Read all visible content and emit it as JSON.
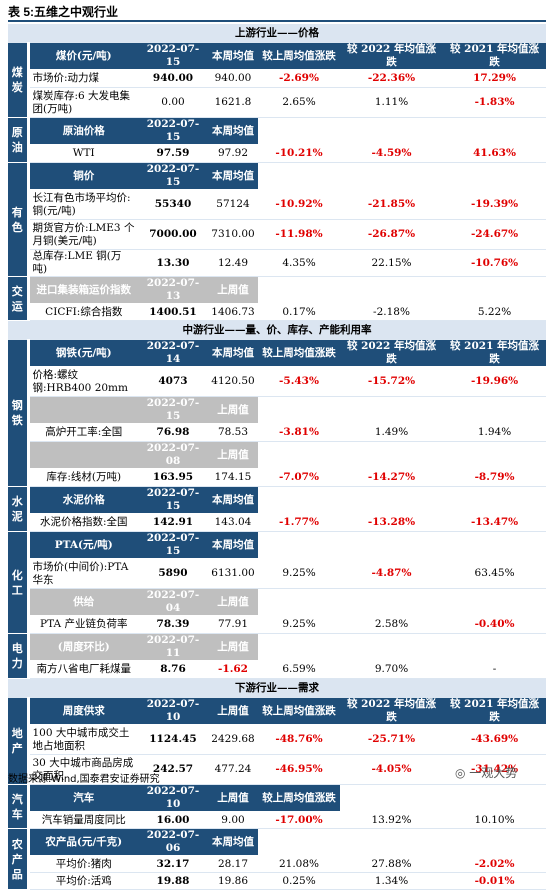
{
  "title": "表 5:五维之中观行业",
  "sections": {
    "up": "上游行业——价格",
    "mid": "中游行业——量、价、库存、产能利用率",
    "down": "下游行业——需求"
  },
  "cats": {
    "coal": "煤炭",
    "oil": "原油",
    "metal": "有色",
    "trans": "交运",
    "steel": "钢铁",
    "cement": "水泥",
    "chem": "化工",
    "power": "电力",
    "estate": "地产",
    "car": "汽车",
    "agri": "农产品"
  },
  "head": {
    "coal": [
      "煤价(元/吨)",
      "2022-07-15",
      "本周均值",
      "较上周均值涨跌",
      "较 2022 年均值涨跌",
      "较 2021 年均值涨跌"
    ],
    "oil": [
      "原油价格",
      "2022-07-15",
      "本周均值"
    ],
    "metal": [
      "铜价",
      "2022-07-15",
      "本周均值"
    ],
    "trans": [
      "进口集装箱运价指数",
      "2022-07-13",
      "上周值"
    ],
    "steel": [
      "钢铁(元/吨)",
      "2022-07-14",
      "本周均值",
      "较上周均值涨跌",
      "较 2022 年均值涨跌",
      "较 2021 年均值涨跌"
    ],
    "steel2": [
      "2022-07-15",
      "上周值"
    ],
    "steel3": [
      "2022-07-08",
      "上周值"
    ],
    "cement": [
      "水泥价格",
      "2022-07-15",
      "本周均值"
    ],
    "chem": [
      "PTA(元/吨)",
      "2022-07-15",
      "本周均值"
    ],
    "chem2": [
      "供给",
      "2022-07-04",
      "上周值"
    ],
    "power": [
      "(周度环比)",
      "2022-07-11",
      "上周值"
    ],
    "estate": [
      "周度供求",
      "2022-07-10",
      "上周值",
      "较上周均值涨跌",
      "较 2022 年均值涨跌",
      "较 2021 年均值涨跌"
    ],
    "car": [
      "汽车",
      "2022-07-10",
      "上周值",
      "较上周均值涨跌"
    ],
    "agri": [
      "农产品(元/千克)",
      "2022-07-06",
      "本周均值"
    ]
  },
  "rows": {
    "coal1": [
      "市场价:动力煤",
      "940.00",
      "940.00",
      "-2.69%",
      "-22.36%",
      "17.29%"
    ],
    "coal2": [
      "煤炭库存:6 大发电集团(万吨)",
      "0.00",
      "1621.8",
      "2.65%",
      "1.11%",
      "-1.83%"
    ],
    "oil1": [
      "WTI",
      "97.59",
      "97.92",
      "-10.21%",
      "-4.59%",
      "41.63%"
    ],
    "metal1": [
      "长江有色市场平均价:铜(元/吨)",
      "55340",
      "57124",
      "-10.92%",
      "-21.85%",
      "-19.39%"
    ],
    "metal2": [
      "期货官方价:LME3 个月铜(美元/吨)",
      "7000.00",
      "7310.00",
      "-11.98%",
      "-26.87%",
      "-24.67%"
    ],
    "metal3": [
      "总库存:LME 铜(万吨)",
      "13.30",
      "12.49",
      "4.35%",
      "22.15%",
      "-10.76%"
    ],
    "trans1": [
      "CICFI:综合指数",
      "1400.51",
      "1406.73",
      "0.17%",
      "-2.18%",
      "5.22%"
    ],
    "steel1": [
      "价格:螺纹钢:HRB400 20mm",
      "4073",
      "4120.50",
      "-5.43%",
      "-15.72%",
      "-19.96%"
    ],
    "steel2": [
      "高炉开工率:全国",
      "76.98",
      "78.53",
      "-3.81%",
      "1.49%",
      "1.94%"
    ],
    "steel3": [
      "库存:线材(万吨)",
      "163.95",
      "174.15",
      "-7.07%",
      "-14.27%",
      "-8.79%"
    ],
    "cement1": [
      "水泥价格指数:全国",
      "142.91",
      "143.04",
      "-1.77%",
      "-13.28%",
      "-13.47%"
    ],
    "chem1": [
      "市场价(中间价):PTA华东",
      "5890",
      "6131.00",
      "9.25%",
      "-4.87%",
      "63.45%"
    ],
    "chem2": [
      "PTA 产业链负荷率",
      "78.39",
      "77.91",
      "9.25%",
      "2.58%",
      "-0.40%"
    ],
    "power1": [
      "南方八省电厂耗煤量",
      "8.76",
      "-1.62",
      "6.59%",
      "9.70%",
      "-"
    ],
    "estate1": [
      "100 大中城市成交土地占地面积",
      "1124.45",
      "2429.68",
      "-48.76%",
      "-25.71%",
      "-43.69%"
    ],
    "estate2": [
      "30 大中城市商品房成交面积",
      "242.57",
      "477.24",
      "-46.95%",
      "-4.05%",
      "-31.42%"
    ],
    "car1": [
      "汽车销量周度同比",
      "16.00",
      "9.00",
      "-17.00%",
      "13.92%",
      "10.10%"
    ],
    "agri1": [
      "平均价:猪肉",
      "32.17",
      "28.17",
      "21.08%",
      "27.88%",
      "-2.02%"
    ],
    "agri2": [
      "平均价:活鸡",
      "19.88",
      "19.86",
      "0.25%",
      "1.34%",
      "-0.01%"
    ]
  },
  "colors": {
    "navy": "#1f4e79",
    "light": "#dbe5f1",
    "gray": "#bfbfbf",
    "red": "#e00000"
  },
  "footer": "数据来源:Wind,国泰君安证券研究",
  "watermark": "一观大势"
}
